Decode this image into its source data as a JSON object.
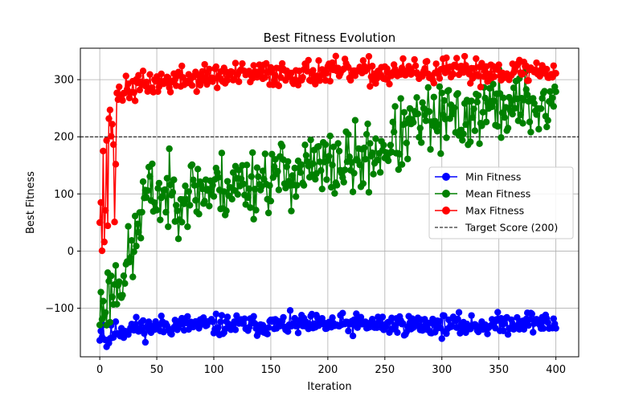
{
  "chart_data": {
    "type": "line",
    "title": "Best Fitness Evolution",
    "xlabel": "Iteration",
    "ylabel": "Best Fitness",
    "xlim": [
      -17,
      420
    ],
    "ylim": [
      -185,
      355
    ],
    "xticks": [
      0,
      50,
      100,
      150,
      200,
      250,
      300,
      350,
      400
    ],
    "yticks": [
      -100,
      0,
      100,
      200,
      300
    ],
    "ytick_labels": [
      "−100",
      "0",
      "100",
      "200",
      "300"
    ],
    "grid": true,
    "legend_position": "center-right",
    "markers": "circle",
    "x_start": 0,
    "x_end": 400,
    "series": [
      {
        "name": "Min Fitness",
        "color": "#0000ff",
        "seed": 11,
        "noise": 9,
        "knots": [
          [
            0,
            -145
          ],
          [
            2,
            -140
          ],
          [
            3,
            -125
          ],
          [
            4,
            -150
          ],
          [
            6,
            -162
          ],
          [
            8,
            -152
          ],
          [
            10,
            -148
          ],
          [
            14,
            -140
          ],
          [
            20,
            -138
          ],
          [
            30,
            -133
          ],
          [
            40,
            -135
          ],
          [
            60,
            -130
          ],
          [
            80,
            -129
          ],
          [
            100,
            -130
          ],
          [
            150,
            -130
          ],
          [
            200,
            -129
          ],
          [
            250,
            -128
          ],
          [
            300,
            -130
          ],
          [
            340,
            -130
          ],
          [
            360,
            -126
          ],
          [
            380,
            -122
          ],
          [
            395,
            -130
          ],
          [
            400,
            -128
          ]
        ]
      },
      {
        "name": "Mean Fitness",
        "color": "#008000",
        "seed": 23,
        "noise": 30,
        "knots": [
          [
            0,
            -110
          ],
          [
            5,
            -85
          ],
          [
            10,
            -72
          ],
          [
            15,
            -55
          ],
          [
            20,
            -40
          ],
          [
            25,
            -20
          ],
          [
            30,
            0
          ],
          [
            35,
            60
          ],
          [
            40,
            95
          ],
          [
            50,
            100
          ],
          [
            60,
            95
          ],
          [
            80,
            105
          ],
          [
            100,
            110
          ],
          [
            130,
            120
          ],
          [
            150,
            130
          ],
          [
            175,
            140
          ],
          [
            200,
            148
          ],
          [
            225,
            155
          ],
          [
            250,
            180
          ],
          [
            265,
            200
          ],
          [
            280,
            225
          ],
          [
            300,
            230
          ],
          [
            320,
            235
          ],
          [
            340,
            250
          ],
          [
            360,
            255
          ],
          [
            380,
            255
          ],
          [
            400,
            255
          ]
        ]
      },
      {
        "name": "Max Fitness",
        "color": "#ff0000",
        "seed": 37,
        "noise": 11,
        "knots": [
          [
            0,
            60
          ],
          [
            1,
            110
          ],
          [
            2,
            8
          ],
          [
            3,
            178
          ],
          [
            4,
            20
          ],
          [
            5,
            60
          ],
          [
            6,
            205
          ],
          [
            7,
            45
          ],
          [
            8,
            240
          ],
          [
            10,
            215
          ],
          [
            12,
            195
          ],
          [
            13,
            55
          ],
          [
            14,
            160
          ],
          [
            15,
            270
          ],
          [
            20,
            280
          ],
          [
            30,
            285
          ],
          [
            40,
            292
          ],
          [
            60,
            297
          ],
          [
            80,
            302
          ],
          [
            100,
            305
          ],
          [
            150,
            310
          ],
          [
            200,
            313
          ],
          [
            250,
            312
          ],
          [
            300,
            314
          ],
          [
            350,
            316
          ],
          [
            400,
            315
          ]
        ]
      }
    ],
    "reference_line": {
      "name": "Target Score (200)",
      "y": 200,
      "color": "#000000",
      "style": "dashed"
    }
  }
}
